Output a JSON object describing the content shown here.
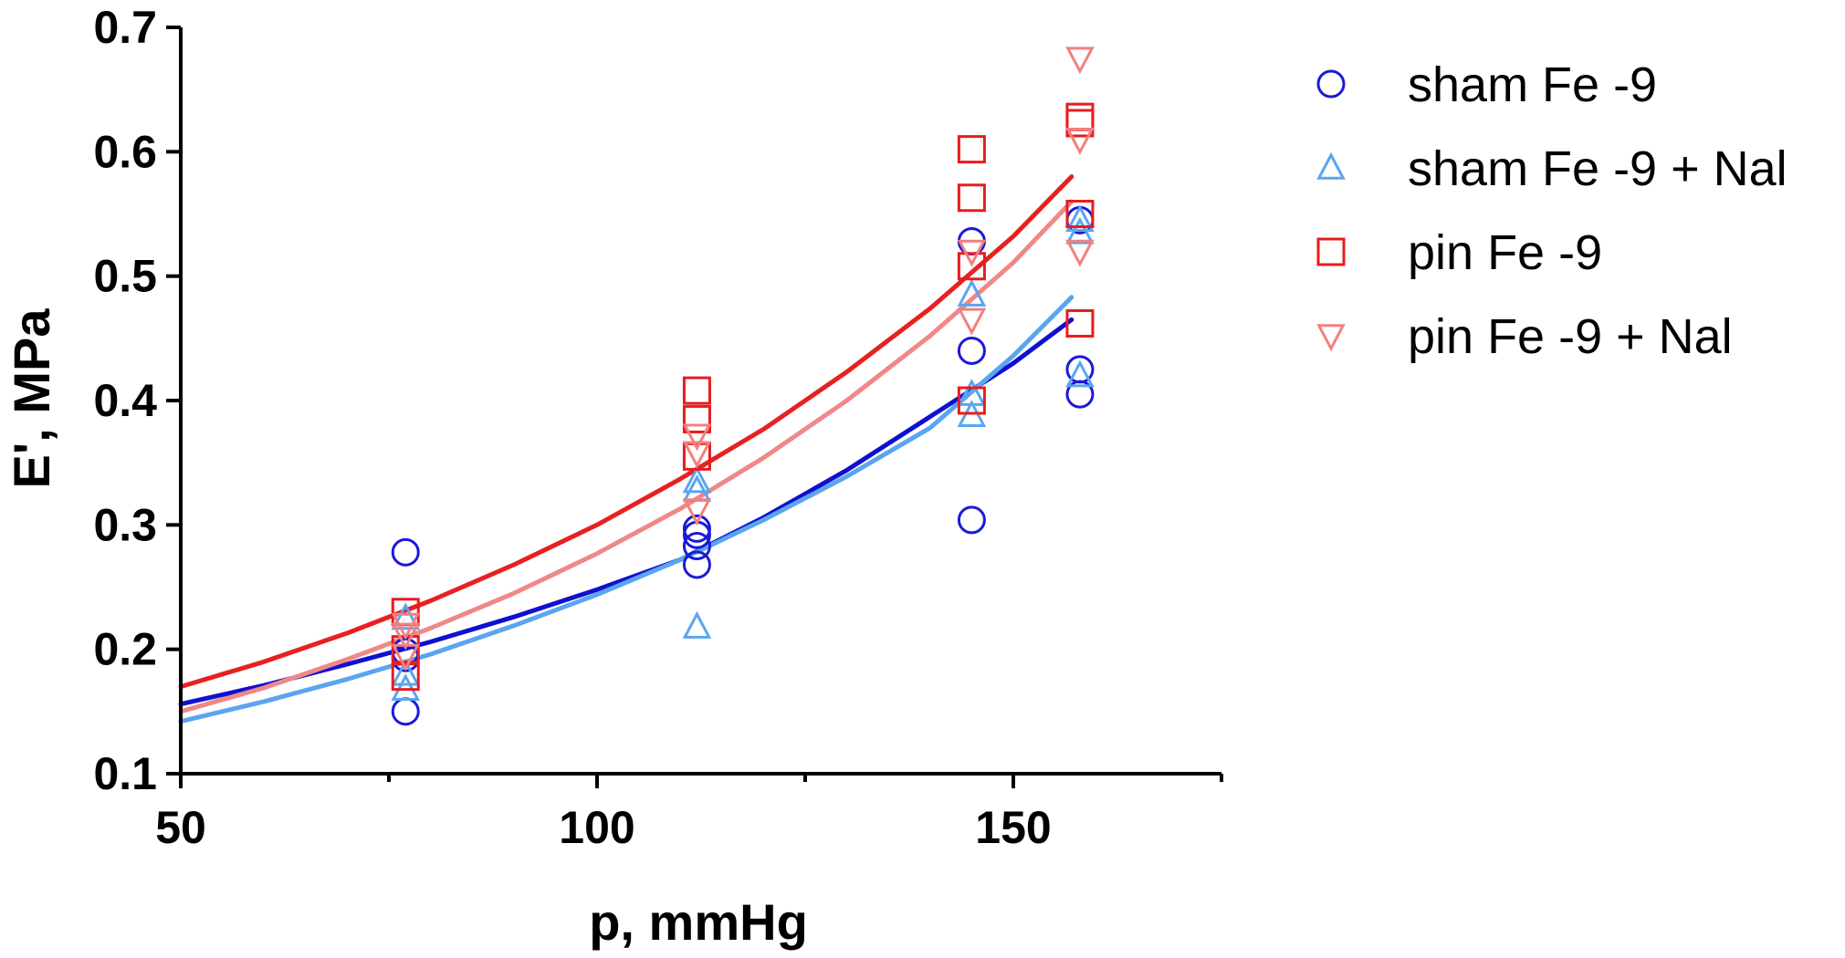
{
  "chart_data": {
    "type": "scatter",
    "title": "",
    "xlabel": "p, mmHg",
    "ylabel": "E', MPa",
    "xlim": [
      50,
      175
    ],
    "ylim": [
      0.1,
      0.7
    ],
    "xticks": [
      50,
      100,
      150
    ],
    "yticks": [
      0.1,
      0.2,
      0.3,
      0.4,
      0.5,
      0.6,
      0.7
    ],
    "xtick_labels": [
      "50",
      "100",
      "150"
    ],
    "ytick_labels": [
      "0.1",
      "0.2",
      "0.3",
      "0.4",
      "0.5",
      "0.6",
      "0.7"
    ],
    "legend_position": "right",
    "series": [
      {
        "name": "sham Fe -9",
        "marker": "circle",
        "color": "#1a1ad8",
        "fit_color": "#1010d0",
        "points": [
          [
            77,
            0.278
          ],
          [
            77,
            0.198
          ],
          [
            77,
            0.193
          ],
          [
            77,
            0.15
          ],
          [
            112,
            0.297
          ],
          [
            112,
            0.292
          ],
          [
            112,
            0.283
          ],
          [
            112,
            0.268
          ],
          [
            145,
            0.528
          ],
          [
            145,
            0.44
          ],
          [
            145,
            0.304
          ],
          [
            158,
            0.545
          ],
          [
            158,
            0.425
          ],
          [
            158,
            0.405
          ]
        ],
        "fit": [
          [
            50,
            0.156
          ],
          [
            60,
            0.171
          ],
          [
            70,
            0.188
          ],
          [
            80,
            0.206
          ],
          [
            90,
            0.226
          ],
          [
            100,
            0.248
          ],
          [
            110,
            0.272
          ],
          [
            120,
            0.306
          ],
          [
            130,
            0.344
          ],
          [
            140,
            0.387
          ],
          [
            150,
            0.43
          ],
          [
            157,
            0.465
          ]
        ]
      },
      {
        "name": "sham Fe -9 + Nal",
        "marker": "triangle-up",
        "color": "#5aa5f0",
        "fit_color": "#5aa5f0",
        "points": [
          [
            77,
            0.225
          ],
          [
            77,
            0.18
          ],
          [
            77,
            0.168
          ],
          [
            112,
            0.335
          ],
          [
            112,
            0.328
          ],
          [
            112,
            0.218
          ],
          [
            145,
            0.485
          ],
          [
            145,
            0.405
          ],
          [
            145,
            0.388
          ],
          [
            158,
            0.545
          ],
          [
            158,
            0.535
          ],
          [
            158,
            0.42
          ]
        ],
        "fit": [
          [
            50,
            0.142
          ],
          [
            60,
            0.158
          ],
          [
            70,
            0.176
          ],
          [
            80,
            0.196
          ],
          [
            90,
            0.219
          ],
          [
            100,
            0.244
          ],
          [
            110,
            0.272
          ],
          [
            120,
            0.304
          ],
          [
            130,
            0.339
          ],
          [
            140,
            0.378
          ],
          [
            150,
            0.436
          ],
          [
            157,
            0.483
          ]
        ]
      },
      {
        "name": "pin Fe -9",
        "marker": "square",
        "color": "#e81c1c",
        "fit_color": "#e82020",
        "points": [
          [
            77,
            0.23
          ],
          [
            77,
            0.2
          ],
          [
            77,
            0.178
          ],
          [
            112,
            0.408
          ],
          [
            112,
            0.385
          ],
          [
            112,
            0.355
          ],
          [
            145,
            0.602
          ],
          [
            145,
            0.563
          ],
          [
            145,
            0.508
          ],
          [
            145,
            0.4
          ],
          [
            158,
            0.628
          ],
          [
            158,
            0.623
          ],
          [
            158,
            0.55
          ],
          [
            158,
            0.462
          ]
        ],
        "fit": [
          [
            50,
            0.17
          ],
          [
            60,
            0.19
          ],
          [
            70,
            0.213
          ],
          [
            80,
            0.239
          ],
          [
            90,
            0.268
          ],
          [
            100,
            0.3
          ],
          [
            110,
            0.337
          ],
          [
            120,
            0.377
          ],
          [
            130,
            0.423
          ],
          [
            140,
            0.474
          ],
          [
            150,
            0.532
          ],
          [
            157,
            0.58
          ]
        ]
      },
      {
        "name": "pin Fe -9 + Nal",
        "marker": "triangle-down",
        "color": "#f28080",
        "fit_color": "#f08888",
        "points": [
          [
            77,
            0.22
          ],
          [
            77,
            0.212
          ],
          [
            77,
            0.195
          ],
          [
            112,
            0.372
          ],
          [
            112,
            0.358
          ],
          [
            112,
            0.312
          ],
          [
            145,
            0.52
          ],
          [
            145,
            0.465
          ],
          [
            158,
            0.675
          ],
          [
            158,
            0.61
          ],
          [
            158,
            0.52
          ]
        ],
        "fit": [
          [
            50,
            0.15
          ],
          [
            60,
            0.169
          ],
          [
            70,
            0.192
          ],
          [
            80,
            0.217
          ],
          [
            90,
            0.245
          ],
          [
            100,
            0.277
          ],
          [
            110,
            0.313
          ],
          [
            120,
            0.354
          ],
          [
            130,
            0.4
          ],
          [
            140,
            0.452
          ],
          [
            150,
            0.511
          ],
          [
            157,
            0.56
          ]
        ]
      }
    ]
  }
}
